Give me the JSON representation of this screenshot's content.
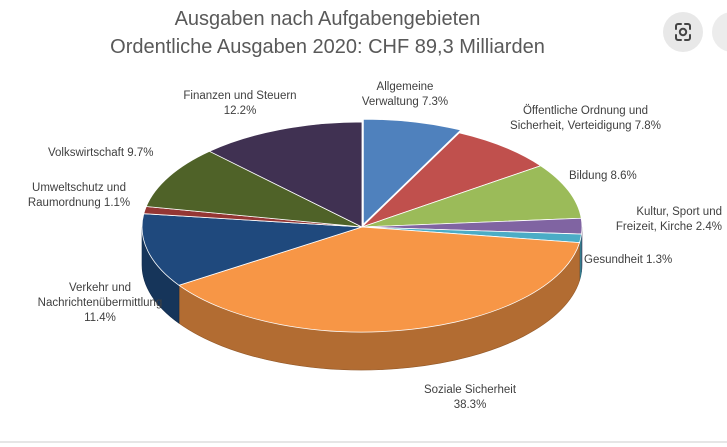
{
  "chart_data": {
    "type": "pie",
    "title": "Ausgaben nach Aufgabengebieten",
    "subtitle": "Ordentliche Ausgaben 2020: CHF 89,3 Milliarden",
    "slices": [
      {
        "name": "Allgemeine Verwaltung",
        "value": 7.3,
        "label_lines": [
          "Allgemeine",
          "Verwaltung 7.3%"
        ],
        "color": "#4f81bd"
      },
      {
        "name": "Öffentliche Ordnung und Sicherheit, Verteidigung",
        "value": 7.8,
        "label_lines": [
          "Öffentliche Ordnung und",
          "Sicherheit, Verteidigung 7.8%"
        ],
        "color": "#c0504d"
      },
      {
        "name": "Bildung",
        "value": 8.6,
        "label_lines": [
          "Bildung 8.6%"
        ],
        "color": "#9bbb59"
      },
      {
        "name": "Kultur, Sport und Freizeit, Kirche",
        "value": 2.4,
        "label_lines": [
          "Kultur, Sport und",
          "Freizeit, Kirche 2.4%"
        ],
        "color": "#8064a2"
      },
      {
        "name": "Gesundheit",
        "value": 1.3,
        "label_lines": [
          "Gesundheit 1.3%"
        ],
        "color": "#4bacc6"
      },
      {
        "name": "Soziale Sicherheit",
        "value": 38.3,
        "label_lines": [
          "Soziale Sicherheit",
          "38.3%"
        ],
        "color": "#f79646"
      },
      {
        "name": "Verkehr und Nachrichtenübermittlung",
        "value": 11.4,
        "label_lines": [
          "Verkehr und",
          "Nachrichtenübermittlung",
          "11.4%"
        ],
        "color": "#1f497d"
      },
      {
        "name": "Umweltschutz und Raumordnung",
        "value": 1.1,
        "label_lines": [
          "Umweltschutz und",
          "Raumordnung 1.1%"
        ],
        "color": "#943634"
      },
      {
        "name": "Volkswirtschaft",
        "value": 9.7,
        "label_lines": [
          "Volkswirtschaft 9.7%"
        ],
        "color": "#4f6228"
      },
      {
        "name": "Finanzen und Steuern",
        "value": 12.2,
        "label_lines": [
          "Finanzen und Steuern",
          "12.2%"
        ],
        "color": "#403152"
      }
    ]
  },
  "ui": {
    "lens_icon": "google-lens-icon",
    "more_icon": "more-options-icon"
  }
}
